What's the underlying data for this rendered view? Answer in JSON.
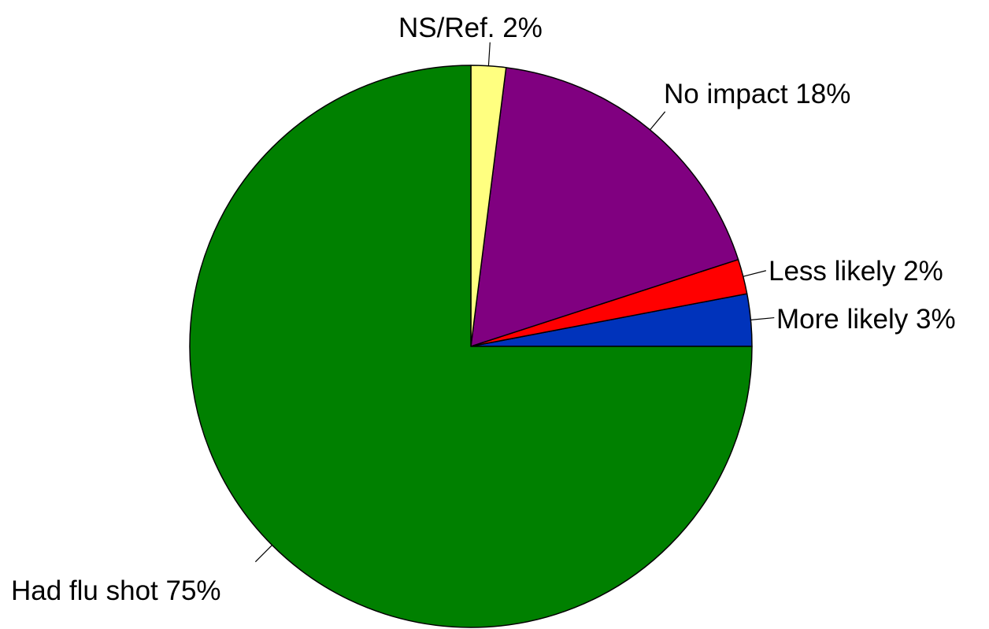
{
  "chart_data": {
    "type": "pie",
    "title": "",
    "start": "3 o'clock",
    "direction": "counterclockwise",
    "slices": [
      {
        "name": "More likely",
        "value": 3,
        "label": "More likely  3%",
        "color": "#0033BB"
      },
      {
        "name": "Less likely",
        "value": 2,
        "label": "Less likely  2%",
        "color": "#FF0000"
      },
      {
        "name": "No impact",
        "value": 18,
        "label": "No impact  18%",
        "color": "#800080"
      },
      {
        "name": "NS/Ref.",
        "value": 2,
        "label": "NS/Ref.  2%",
        "color": "#FFFF80"
      },
      {
        "name": "Had flu shot",
        "value": 75,
        "label": "Had flu shot  75%",
        "color": "#008000"
      }
    ]
  }
}
